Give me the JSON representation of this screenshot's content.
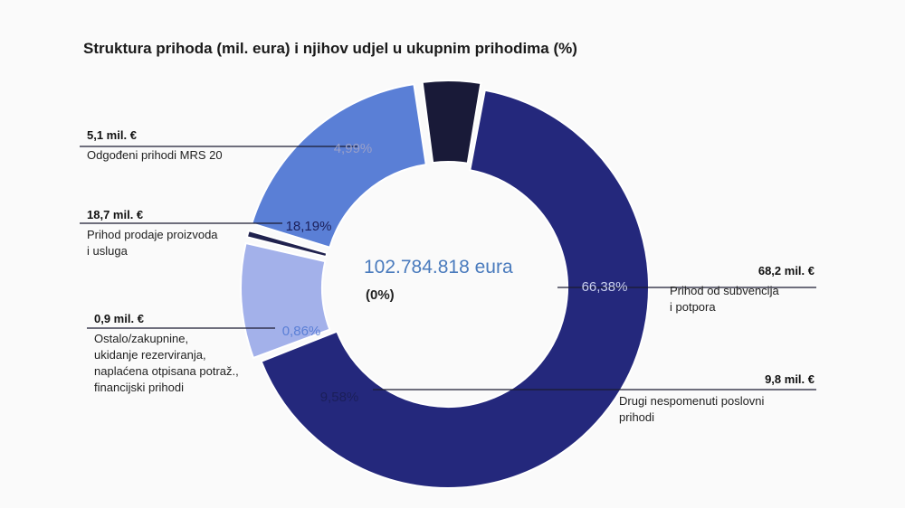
{
  "chart_data": {
    "type": "pie",
    "title": "Struktura prihoda (mil. eura) i njihov udjel u ukupnim prihodima (%)",
    "center_value": "102.784.818 eura",
    "center_sub": "(0%)",
    "slices": [
      {
        "value": 66.38,
        "label": "66,38%",
        "amount": "68,2 mil. €",
        "description": "Prihod od subvencija i potpora",
        "desc_lines": [
          "Prihod od subvencija",
          "i potpora"
        ],
        "color": "#24287c"
      },
      {
        "value": 9.58,
        "label": "9,58%",
        "amount": "9,8 mil. €",
        "description": "Drugi nespomenuti poslovni prihodi",
        "desc_lines": [
          "Drugi nespomenuti poslovni",
          "prihodi"
        ],
        "color": "#a3b1ea"
      },
      {
        "value": 0.86,
        "label": "0,86%",
        "amount": "0,9 mil. €",
        "description": "Ostalo/zakupnine, ukidanje rezerviranja, naplaćena otpisana potraž., financijski prihodi",
        "desc_lines": [
          "Ostalo/zakupnine,",
          "ukidanje rezerviranja,",
          "naplaćena otpisana potraž.,",
          "financijski prihodi"
        ],
        "color": "#20224e"
      },
      {
        "value": 18.19,
        "label": "18,19%",
        "amount": "18,7 mil. €",
        "description": "Prihod prodaje proizvoda i usluga",
        "desc_lines": [
          "Prihod prodaje proizvoda",
          "i usluga"
        ],
        "color": "#5a7fd6"
      },
      {
        "value": 4.99,
        "label": "4,99%",
        "amount": "5,1 mil. €",
        "description": "Odgođeni prihodi MRS 20",
        "desc_lines": [
          "Odgođeni prihodi MRS 20"
        ],
        "color": "#191a38"
      }
    ]
  }
}
